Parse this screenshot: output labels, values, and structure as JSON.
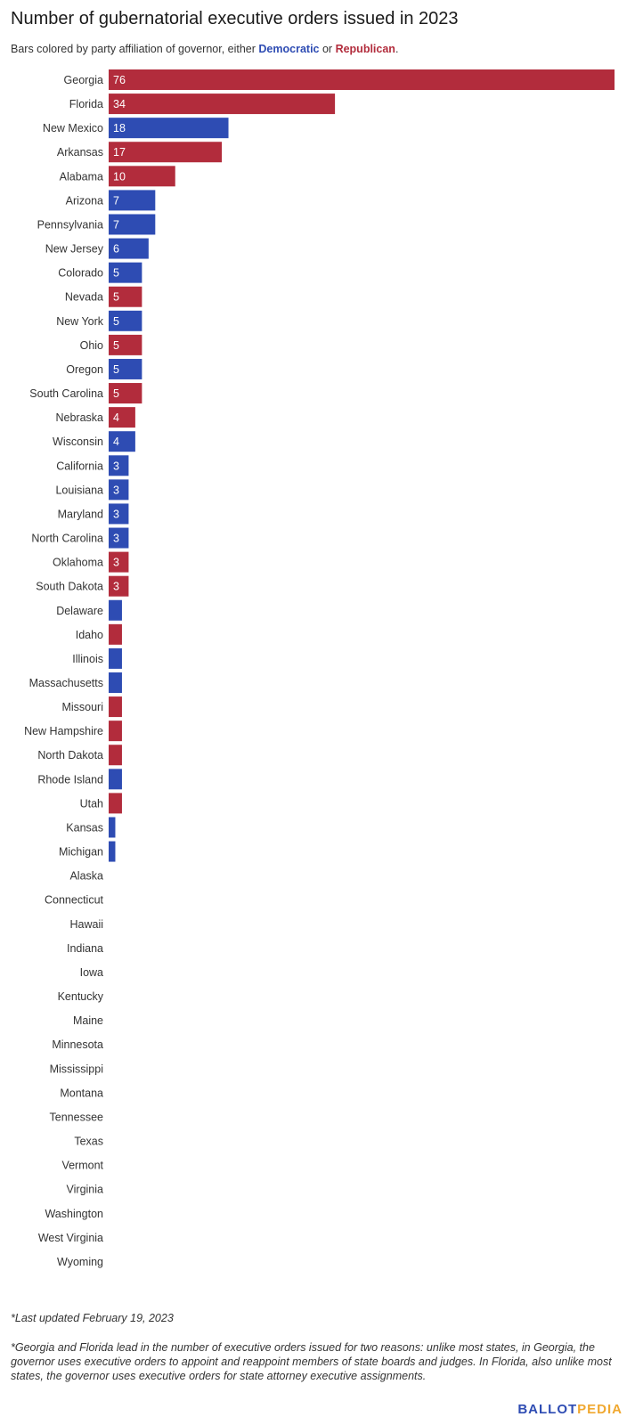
{
  "chart_data": {
    "type": "bar",
    "orientation": "horizontal",
    "title": "Number of gubernatorial executive orders issued in 2023",
    "subtitle": {
      "prefix": "Bars colored by party affiliation of governor, either ",
      "dem_word": "Democratic",
      "middle": " or ",
      "rep_word": "Republican",
      "suffix": "."
    },
    "colors": {
      "D": "#2e4cb3",
      "R": "#b22c3c"
    },
    "xlim": [
      0,
      76
    ],
    "categories": [
      "Georgia",
      "Florida",
      "New Mexico",
      "Arkansas",
      "Alabama",
      "Arizona",
      "Pennsylvania",
      "New Jersey",
      "Colorado",
      "Nevada",
      "New York",
      "Ohio",
      "Oregon",
      "South Carolina",
      "Nebraska",
      "Wisconsin",
      "California",
      "Louisiana",
      "Maryland",
      "North Carolina",
      "Oklahoma",
      "South Dakota",
      "Delaware",
      "Idaho",
      "Illinois",
      "Massachusetts",
      "Missouri",
      "New Hampshire",
      "North Dakota",
      "Rhode Island",
      "Utah",
      "Kansas",
      "Michigan",
      "Alaska",
      "Connecticut",
      "Hawaii",
      "Indiana",
      "Iowa",
      "Kentucky",
      "Maine",
      "Minnesota",
      "Mississippi",
      "Montana",
      "Tennessee",
      "Texas",
      "Vermont",
      "Virginia",
      "Washington",
      "West Virginia",
      "Wyoming"
    ],
    "values": [
      76,
      34,
      18,
      17,
      10,
      7,
      7,
      6,
      5,
      5,
      5,
      5,
      5,
      5,
      4,
      4,
      3,
      3,
      3,
      3,
      3,
      3,
      2,
      2,
      2,
      2,
      2,
      2,
      2,
      2,
      2,
      1,
      1,
      0,
      0,
      0,
      0,
      0,
      0,
      0,
      0,
      0,
      0,
      0,
      0,
      0,
      0,
      0,
      0,
      0
    ],
    "party": [
      "R",
      "R",
      "D",
      "R",
      "R",
      "D",
      "D",
      "D",
      "D",
      "R",
      "D",
      "R",
      "D",
      "R",
      "R",
      "D",
      "D",
      "D",
      "D",
      "D",
      "R",
      "R",
      "D",
      "R",
      "D",
      "D",
      "R",
      "R",
      "R",
      "D",
      "R",
      "D",
      "D",
      "R",
      "D",
      "D",
      "R",
      "R",
      "D",
      "D",
      "D",
      "R",
      "R",
      "R",
      "R",
      "R",
      "R",
      "D",
      "R",
      "R"
    ],
    "labeled": [
      true,
      true,
      true,
      true,
      true,
      true,
      true,
      true,
      true,
      true,
      true,
      true,
      true,
      true,
      true,
      true,
      true,
      true,
      true,
      true,
      true,
      true,
      false,
      false,
      false,
      false,
      false,
      false,
      false,
      false,
      false,
      false,
      false,
      false,
      false,
      false,
      false,
      false,
      false,
      false,
      false,
      false,
      false,
      false,
      false,
      false,
      false,
      false,
      false,
      false
    ]
  },
  "notes": {
    "updated": "*Last updated February 19, 2023",
    "footnote": "*Georgia and Florida lead in the number of executive orders issued for two reasons: unlike most states, in Georgia, the governor uses executive orders to appoint and reappoint members of state boards and judges. In Florida, also unlike most states, the governor uses executive orders for state attorney executive assignments."
  },
  "logo": {
    "part1": "BALLOT",
    "part2": "PEDIA"
  }
}
